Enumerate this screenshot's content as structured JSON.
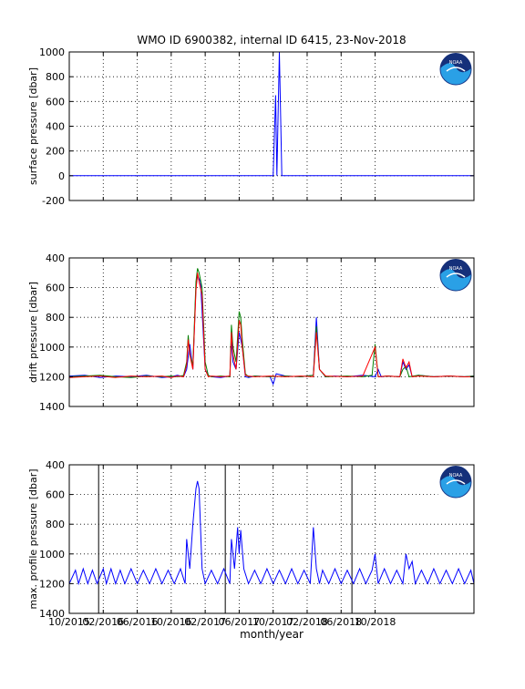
{
  "title": "WMO ID 6900382, internal ID 6415, 23-Nov-2018",
  "xlabel": "month/year",
  "x_tick_labels": [
    "10/2015",
    "02/2016",
    "06/2016",
    "10/2016",
    "02/2017",
    "06/2017",
    "10/2017",
    "02/2018",
    "06/2018",
    "10/2018"
  ],
  "colors": {
    "blue": "#0000ff",
    "green": "#008000",
    "red": "#ff0000",
    "axis": "#000000",
    "grid": "#000000"
  },
  "logo_text": "NOAA",
  "chart_data": [
    {
      "type": "line",
      "ylabel": "surface pressure [dbar]",
      "ylim": [
        -200,
        1000
      ],
      "y_ticks": [
        1000,
        800,
        600,
        400,
        200,
        0,
        -200
      ],
      "grid": true,
      "x_unit": "months since 10/2015",
      "series": [
        {
          "color": "#0000ff",
          "x": [
            0,
            0.1,
            0.12,
            0.14,
            5.9,
            6.35,
            6.5,
            6.6,
            6.68,
            6.72,
            6.8,
            6.88,
            13.1
          ],
          "y": [
            0,
            0,
            0,
            0,
            0,
            0,
            0,
            0,
            650,
            0,
            1000,
            0,
            0
          ]
        }
      ]
    },
    {
      "type": "line",
      "ylabel": "drift pressure [dbar]",
      "ylim": [
        1400,
        400
      ],
      "y_ticks": [
        400,
        600,
        800,
        1000,
        1200,
        1400
      ],
      "grid": true,
      "series": [
        {
          "color": "#0000ff",
          "x": [
            0,
            0.5,
            1,
            1.5,
            2,
            2.5,
            3,
            3.3,
            3.5,
            3.7,
            3.8,
            3.9,
            4.0,
            4.1,
            4.15,
            4.25,
            4.4,
            4.5,
            4.6,
            4.9,
            5.2,
            5.25,
            5.3,
            5.4,
            5.5,
            5.6,
            5.7,
            5.8,
            6.0,
            6.5,
            6.6,
            6.7,
            7.0,
            7.5,
            7.9,
            8.0,
            8.1,
            8.3,
            8.6,
            9.0,
            9.5,
            9.9,
            10.0,
            10.1,
            10.3,
            10.7,
            10.8,
            10.9,
            11.0,
            11.1,
            11.3,
            11.8,
            12.3,
            12.8,
            13.1
          ],
          "y": [
            1195,
            1190,
            1205,
            1195,
            1200,
            1190,
            1205,
            1200,
            1190,
            1200,
            1150,
            980,
            1150,
            600,
            520,
            560,
            1150,
            1190,
            1200,
            1205,
            1195,
            950,
            1100,
            1150,
            900,
            1000,
            1200,
            1205,
            1195,
            1200,
            1250,
            1180,
            1195,
            1200,
            1190,
            800,
            1150,
            1200,
            1195,
            1200,
            1190,
            1200,
            1150,
            1200,
            1195,
            1200,
            1100,
            1150,
            1120,
            1200,
            1190,
            1200,
            1195,
            1200,
            1195
          ]
        },
        {
          "color": "#008000",
          "x": [
            0,
            0.5,
            1,
            1.5,
            2,
            2.5,
            3,
            3.3,
            3.5,
            3.7,
            3.8,
            3.85,
            3.9,
            4.0,
            4.1,
            4.15,
            4.2,
            4.3,
            4.4,
            4.5,
            4.6,
            4.9,
            5.2,
            5.25,
            5.3,
            5.4,
            5.5,
            5.55,
            5.6,
            5.7,
            5.8,
            6.0,
            6.5,
            7.0,
            7.5,
            7.9,
            8.0,
            8.1,
            8.3,
            9.0,
            9.5,
            9.8,
            9.9,
            10.0,
            10.3,
            10.7,
            10.8,
            10.9,
            11.0,
            11.3,
            11.8,
            12.3,
            12.8,
            13.1
          ],
          "y": [
            1200,
            1195,
            1190,
            1200,
            1205,
            1195,
            1200,
            1195,
            1200,
            1190,
            1100,
            920,
            1050,
            1120,
            560,
            470,
            500,
            600,
            1100,
            1190,
            1200,
            1195,
            1200,
            850,
            1000,
            1100,
            760,
            800,
            950,
            1180,
            1200,
            1195,
            1200,
            1195,
            1200,
            1190,
            860,
            1150,
            1200,
            1195,
            1200,
            1190,
            980,
            1200,
            1195,
            1200,
            1150,
            1130,
            1200,
            1190,
            1200,
            1195,
            1200,
            1195
          ]
        },
        {
          "color": "#ff0000",
          "x": [
            0,
            0.5,
            1,
            1.5,
            2,
            2.5,
            3,
            3.3,
            3.5,
            3.7,
            3.8,
            3.85,
            3.9,
            4.0,
            4.1,
            4.15,
            4.2,
            4.3,
            4.4,
            4.5,
            4.6,
            4.9,
            5.2,
            5.25,
            5.3,
            5.4,
            5.5,
            5.55,
            5.6,
            5.7,
            5.8,
            6.0,
            6.5,
            7.0,
            7.5,
            7.9,
            8.0,
            8.1,
            8.3,
            9.0,
            9.5,
            9.9,
            10.0,
            10.3,
            10.7,
            10.8,
            10.9,
            11.0,
            11.1,
            11.3,
            11.8,
            12.3,
            12.8,
            13.1
          ],
          "y": [
            1205,
            1200,
            1195,
            1205,
            1195,
            1200,
            1195,
            1205,
            1195,
            1200,
            1120,
            950,
            1050,
            1150,
            620,
            500,
            560,
            650,
            1150,
            1200,
            1195,
            1200,
            1195,
            900,
            1050,
            1150,
            820,
            850,
            1000,
            1190,
            1195,
            1200,
            1195,
            1200,
            1195,
            1200,
            900,
            1150,
            1195,
            1200,
            1195,
            1000,
            1200,
            1195,
            1200,
            1080,
            1140,
            1100,
            1200,
            1195,
            1200,
            1195,
            1200,
            1200
          ]
        }
      ]
    },
    {
      "type": "line",
      "ylabel": "max. profile pressure [dbar]",
      "ylim": [
        1400,
        400
      ],
      "y_ticks": [
        400,
        600,
        800,
        1000,
        1200,
        1400
      ],
      "grid": true,
      "series": [
        {
          "color": "#0000ff",
          "x": [
            0,
            0.2,
            0.3,
            0.45,
            0.6,
            0.75,
            0.9,
            1.1,
            1.2,
            1.35,
            1.5,
            1.65,
            1.8,
            2.0,
            2.2,
            2.4,
            2.6,
            2.8,
            3.0,
            3.2,
            3.4,
            3.6,
            3.75,
            3.8,
            3.9,
            4.0,
            4.1,
            4.15,
            4.2,
            4.3,
            4.4,
            4.6,
            4.8,
            5.0,
            5.2,
            5.25,
            5.35,
            5.45,
            5.5,
            5.55,
            5.65,
            5.8,
            6.0,
            6.2,
            6.4,
            6.6,
            6.8,
            7.0,
            7.2,
            7.4,
            7.6,
            7.8,
            7.9,
            8.0,
            8.1,
            8.2,
            8.4,
            8.6,
            8.8,
            9.0,
            9.2,
            9.4,
            9.6,
            9.8,
            9.9,
            10.0,
            10.2,
            10.4,
            10.6,
            10.8,
            10.9,
            11.0,
            11.1,
            11.2,
            11.4,
            11.6,
            11.8,
            12.0,
            12.2,
            12.4,
            12.6,
            12.8,
            13.0,
            13.1
          ],
          "y": [
            1200,
            1110,
            1200,
            1100,
            1200,
            1110,
            1200,
            1100,
            1200,
            1100,
            1200,
            1110,
            1200,
            1100,
            1200,
            1110,
            1200,
            1100,
            1200,
            1110,
            1200,
            1100,
            1200,
            900,
            1100,
            800,
            560,
            510,
            560,
            1100,
            1200,
            1110,
            1200,
            1100,
            1200,
            900,
            1100,
            820,
            1000,
            840,
            1100,
            1200,
            1110,
            1200,
            1100,
            1200,
            1110,
            1200,
            1100,
            1200,
            1110,
            1200,
            820,
            1100,
            1200,
            1110,
            1200,
            1100,
            1200,
            1110,
            1200,
            1100,
            1200,
            1110,
            1000,
            1200,
            1100,
            1200,
            1110,
            1200,
            1000,
            1100,
            1050,
            1200,
            1110,
            1200,
            1100,
            1200,
            1110,
            1200,
            1100,
            1200,
            1110,
            1200
          ]
        }
      ],
      "vertical_lines_x": [
        0.95,
        5.05,
        9.15
      ]
    }
  ]
}
